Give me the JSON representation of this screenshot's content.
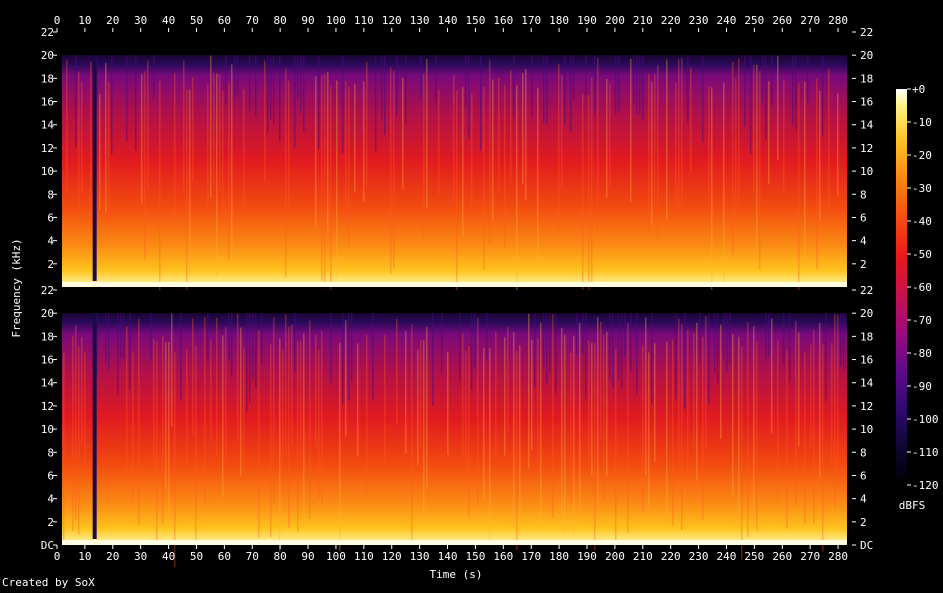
{
  "chart_data": {
    "type": "heatmap",
    "xlabel": "Time (s)",
    "ylabel": "Frequency (kHz)",
    "xlim": [
      0,
      285
    ],
    "x_ticks": [
      "0",
      "10",
      "20",
      "30",
      "40",
      "50",
      "60",
      "70",
      "80",
      "90",
      "100",
      "110",
      "120",
      "130",
      "140",
      "150",
      "160",
      "170",
      "180",
      "190",
      "200",
      "210",
      "220",
      "230",
      "240",
      "250",
      "260",
      "270",
      "280"
    ],
    "ylim": [
      0,
      22
    ],
    "y_ticks_top": [
      "2",
      "4",
      "6",
      "8",
      "10",
      "12",
      "14",
      "16",
      "18",
      "20",
      "22"
    ],
    "y_ticks_bottom": [
      "DC",
      "2",
      "4",
      "6",
      "8",
      "10",
      "12",
      "14",
      "16",
      "18",
      "20",
      "22"
    ],
    "channels": 2,
    "colorbar": {
      "label": "dBFS",
      "range": [
        -120,
        0
      ],
      "ticks": [
        "+0",
        "-10",
        "-20",
        "-30",
        "-40",
        "-50",
        "-60",
        "-70",
        "-80",
        "-90",
        "-100",
        "-110",
        "-120"
      ]
    },
    "audio_cutoff_khz": 20,
    "silent_gap_time_s": 13.5
  },
  "footer": "Created by SoX"
}
